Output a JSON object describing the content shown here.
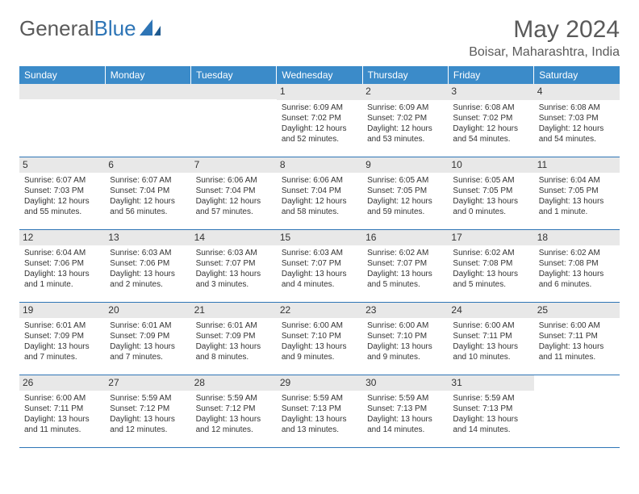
{
  "logo": {
    "text1": "General",
    "text2": "Blue"
  },
  "title": "May 2024",
  "location": "Boisar, Maharashtra, India",
  "colors": {
    "header_bg": "#3b8bc9",
    "header_text": "#ffffff",
    "rule": "#2e75b6",
    "daynum_bg": "#e8e8e8",
    "text": "#333333",
    "logo_gray": "#5a5a5a",
    "logo_blue": "#2e75b6"
  },
  "day_headers": [
    "Sunday",
    "Monday",
    "Tuesday",
    "Wednesday",
    "Thursday",
    "Friday",
    "Saturday"
  ],
  "weeks": [
    [
      null,
      null,
      null,
      {
        "n": "1",
        "sr": "Sunrise: 6:09 AM",
        "ss": "Sunset: 7:02 PM",
        "dl": "Daylight: 12 hours and 52 minutes."
      },
      {
        "n": "2",
        "sr": "Sunrise: 6:09 AM",
        "ss": "Sunset: 7:02 PM",
        "dl": "Daylight: 12 hours and 53 minutes."
      },
      {
        "n": "3",
        "sr": "Sunrise: 6:08 AM",
        "ss": "Sunset: 7:02 PM",
        "dl": "Daylight: 12 hours and 54 minutes."
      },
      {
        "n": "4",
        "sr": "Sunrise: 6:08 AM",
        "ss": "Sunset: 7:03 PM",
        "dl": "Daylight: 12 hours and 54 minutes."
      }
    ],
    [
      {
        "n": "5",
        "sr": "Sunrise: 6:07 AM",
        "ss": "Sunset: 7:03 PM",
        "dl": "Daylight: 12 hours and 55 minutes."
      },
      {
        "n": "6",
        "sr": "Sunrise: 6:07 AM",
        "ss": "Sunset: 7:04 PM",
        "dl": "Daylight: 12 hours and 56 minutes."
      },
      {
        "n": "7",
        "sr": "Sunrise: 6:06 AM",
        "ss": "Sunset: 7:04 PM",
        "dl": "Daylight: 12 hours and 57 minutes."
      },
      {
        "n": "8",
        "sr": "Sunrise: 6:06 AM",
        "ss": "Sunset: 7:04 PM",
        "dl": "Daylight: 12 hours and 58 minutes."
      },
      {
        "n": "9",
        "sr": "Sunrise: 6:05 AM",
        "ss": "Sunset: 7:05 PM",
        "dl": "Daylight: 12 hours and 59 minutes."
      },
      {
        "n": "10",
        "sr": "Sunrise: 6:05 AM",
        "ss": "Sunset: 7:05 PM",
        "dl": "Daylight: 13 hours and 0 minutes."
      },
      {
        "n": "11",
        "sr": "Sunrise: 6:04 AM",
        "ss": "Sunset: 7:05 PM",
        "dl": "Daylight: 13 hours and 1 minute."
      }
    ],
    [
      {
        "n": "12",
        "sr": "Sunrise: 6:04 AM",
        "ss": "Sunset: 7:06 PM",
        "dl": "Daylight: 13 hours and 1 minute."
      },
      {
        "n": "13",
        "sr": "Sunrise: 6:03 AM",
        "ss": "Sunset: 7:06 PM",
        "dl": "Daylight: 13 hours and 2 minutes."
      },
      {
        "n": "14",
        "sr": "Sunrise: 6:03 AM",
        "ss": "Sunset: 7:07 PM",
        "dl": "Daylight: 13 hours and 3 minutes."
      },
      {
        "n": "15",
        "sr": "Sunrise: 6:03 AM",
        "ss": "Sunset: 7:07 PM",
        "dl": "Daylight: 13 hours and 4 minutes."
      },
      {
        "n": "16",
        "sr": "Sunrise: 6:02 AM",
        "ss": "Sunset: 7:07 PM",
        "dl": "Daylight: 13 hours and 5 minutes."
      },
      {
        "n": "17",
        "sr": "Sunrise: 6:02 AM",
        "ss": "Sunset: 7:08 PM",
        "dl": "Daylight: 13 hours and 5 minutes."
      },
      {
        "n": "18",
        "sr": "Sunrise: 6:02 AM",
        "ss": "Sunset: 7:08 PM",
        "dl": "Daylight: 13 hours and 6 minutes."
      }
    ],
    [
      {
        "n": "19",
        "sr": "Sunrise: 6:01 AM",
        "ss": "Sunset: 7:09 PM",
        "dl": "Daylight: 13 hours and 7 minutes."
      },
      {
        "n": "20",
        "sr": "Sunrise: 6:01 AM",
        "ss": "Sunset: 7:09 PM",
        "dl": "Daylight: 13 hours and 7 minutes."
      },
      {
        "n": "21",
        "sr": "Sunrise: 6:01 AM",
        "ss": "Sunset: 7:09 PM",
        "dl": "Daylight: 13 hours and 8 minutes."
      },
      {
        "n": "22",
        "sr": "Sunrise: 6:00 AM",
        "ss": "Sunset: 7:10 PM",
        "dl": "Daylight: 13 hours and 9 minutes."
      },
      {
        "n": "23",
        "sr": "Sunrise: 6:00 AM",
        "ss": "Sunset: 7:10 PM",
        "dl": "Daylight: 13 hours and 9 minutes."
      },
      {
        "n": "24",
        "sr": "Sunrise: 6:00 AM",
        "ss": "Sunset: 7:11 PM",
        "dl": "Daylight: 13 hours and 10 minutes."
      },
      {
        "n": "25",
        "sr": "Sunrise: 6:00 AM",
        "ss": "Sunset: 7:11 PM",
        "dl": "Daylight: 13 hours and 11 minutes."
      }
    ],
    [
      {
        "n": "26",
        "sr": "Sunrise: 6:00 AM",
        "ss": "Sunset: 7:11 PM",
        "dl": "Daylight: 13 hours and 11 minutes."
      },
      {
        "n": "27",
        "sr": "Sunrise: 5:59 AM",
        "ss": "Sunset: 7:12 PM",
        "dl": "Daylight: 13 hours and 12 minutes."
      },
      {
        "n": "28",
        "sr": "Sunrise: 5:59 AM",
        "ss": "Sunset: 7:12 PM",
        "dl": "Daylight: 13 hours and 12 minutes."
      },
      {
        "n": "29",
        "sr": "Sunrise: 5:59 AM",
        "ss": "Sunset: 7:13 PM",
        "dl": "Daylight: 13 hours and 13 minutes."
      },
      {
        "n": "30",
        "sr": "Sunrise: 5:59 AM",
        "ss": "Sunset: 7:13 PM",
        "dl": "Daylight: 13 hours and 14 minutes."
      },
      {
        "n": "31",
        "sr": "Sunrise: 5:59 AM",
        "ss": "Sunset: 7:13 PM",
        "dl": "Daylight: 13 hours and 14 minutes."
      },
      null
    ]
  ]
}
